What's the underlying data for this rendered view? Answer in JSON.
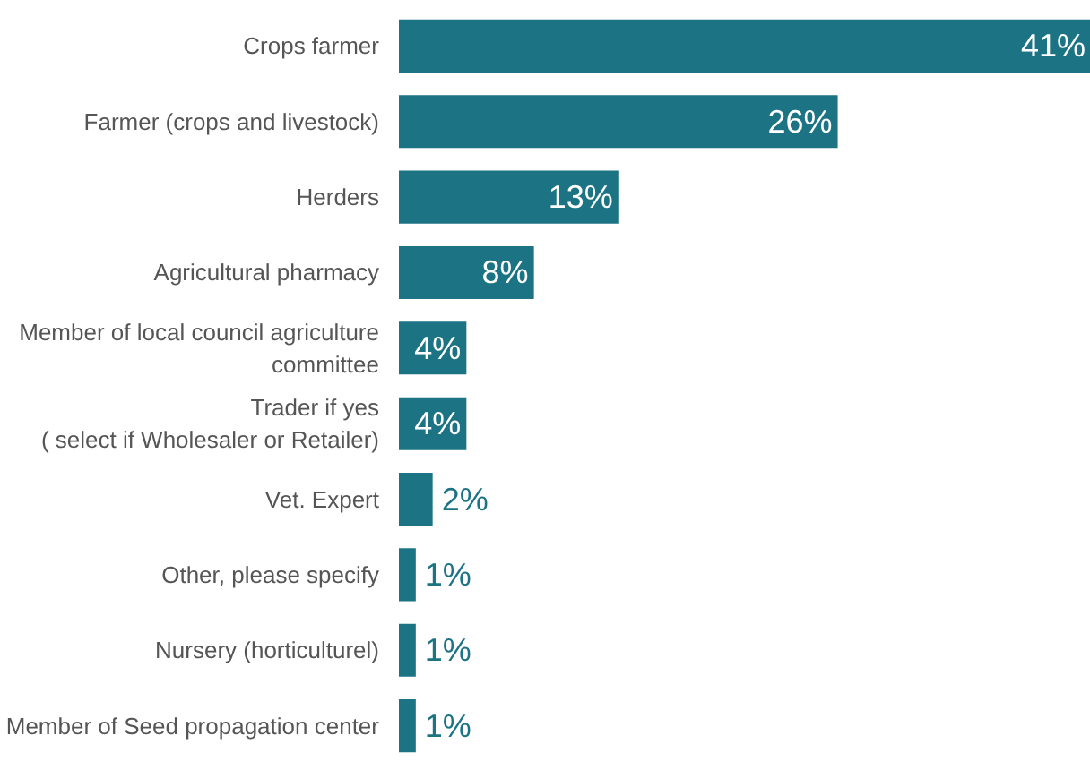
{
  "chart_data": {
    "type": "bar",
    "orientation": "horizontal",
    "categories": [
      "Crops farmer",
      "Farmer (crops and livestock)",
      "Herders",
      "Agricultural pharmacy",
      "Member of local council agriculture\ncommittee",
      "Trader if yes\n( select if Wholesaler or Retailer)",
      "Vet. Expert",
      "Other, please specify",
      "Nursery (horticulturel)",
      "Member of Seed propagation center"
    ],
    "values": [
      41,
      26,
      13,
      8,
      4,
      4,
      2,
      1,
      1,
      1
    ],
    "value_labels": [
      "41%",
      "26%",
      "13%",
      "8%",
      "4%",
      "4%",
      "2%",
      "1%",
      "1%",
      "1%"
    ],
    "color": "#1b7384"
  }
}
